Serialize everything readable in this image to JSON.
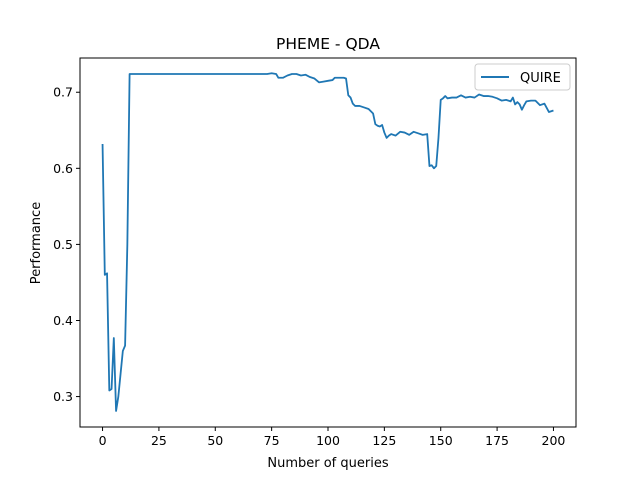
{
  "chart_data": {
    "type": "line",
    "title": "PHEME - QDA",
    "xlabel": "Number of queries",
    "ylabel": "Performance",
    "xlim": [
      -10,
      210
    ],
    "ylim": [
      0.26,
      0.745
    ],
    "xticks": [
      0,
      25,
      50,
      75,
      100,
      125,
      150,
      175,
      200
    ],
    "yticks": [
      0.3,
      0.4,
      0.5,
      0.6,
      0.7
    ],
    "ytick_labels": [
      "0.3",
      "0.4",
      "0.5",
      "0.6",
      "0.7"
    ],
    "grid": false,
    "legend": {
      "position": "upper right",
      "entries": [
        "QUIRE"
      ]
    },
    "series": [
      {
        "name": "QUIRE",
        "color": "#1f77b4",
        "x": [
          0,
          1,
          2,
          3,
          4,
          5,
          6,
          7,
          8,
          9,
          10,
          11,
          12,
          15,
          20,
          30,
          40,
          50,
          60,
          70,
          73,
          75,
          77,
          78,
          80,
          82,
          84,
          86,
          88,
          90,
          92,
          94,
          96,
          98,
          100,
          102,
          103,
          105,
          107,
          108,
          109,
          110,
          111,
          112,
          114,
          116,
          118,
          120,
          121,
          122,
          123,
          124,
          125,
          126,
          127,
          128,
          130,
          132,
          134,
          136,
          138,
          140,
          142,
          144,
          145,
          146,
          147,
          148,
          149,
          150,
          151,
          152,
          153,
          155,
          157,
          159,
          161,
          163,
          165,
          167,
          169,
          171,
          173,
          175,
          177,
          179,
          181,
          182,
          183,
          184,
          185,
          186,
          187,
          188,
          190,
          192,
          194,
          196,
          198,
          200
        ],
        "y": [
          0.632,
          0.46,
          0.462,
          0.308,
          0.31,
          0.377,
          0.281,
          0.3,
          0.33,
          0.36,
          0.367,
          0.5,
          0.724,
          0.724,
          0.724,
          0.724,
          0.724,
          0.724,
          0.724,
          0.724,
          0.724,
          0.725,
          0.724,
          0.719,
          0.719,
          0.722,
          0.724,
          0.724,
          0.722,
          0.723,
          0.72,
          0.718,
          0.713,
          0.714,
          0.715,
          0.716,
          0.719,
          0.719,
          0.719,
          0.718,
          0.696,
          0.693,
          0.685,
          0.682,
          0.682,
          0.68,
          0.678,
          0.672,
          0.658,
          0.656,
          0.655,
          0.657,
          0.647,
          0.64,
          0.643,
          0.645,
          0.643,
          0.648,
          0.647,
          0.644,
          0.648,
          0.646,
          0.644,
          0.645,
          0.603,
          0.604,
          0.6,
          0.603,
          0.64,
          0.69,
          0.692,
          0.695,
          0.692,
          0.693,
          0.693,
          0.696,
          0.693,
          0.694,
          0.693,
          0.697,
          0.695,
          0.695,
          0.694,
          0.692,
          0.689,
          0.69,
          0.688,
          0.693,
          0.684,
          0.687,
          0.684,
          0.677,
          0.683,
          0.688,
          0.689,
          0.689,
          0.683,
          0.685,
          0.674,
          0.676
        ]
      }
    ]
  }
}
